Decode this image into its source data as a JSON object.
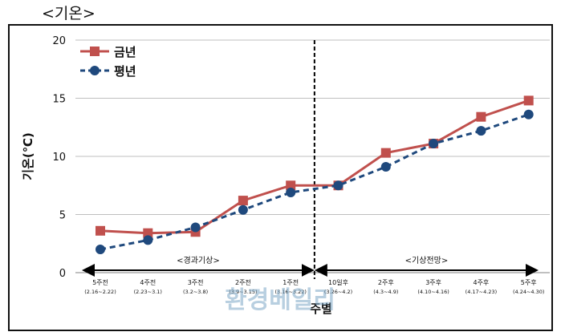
{
  "title": "<기온>",
  "watermark": "환경베일리",
  "colors": {
    "current": "#c0504d",
    "normal": "#1f497d",
    "grid": "#bfbfbf",
    "divider": "#000000"
  },
  "periods": [
    {
      "label": "<경과기상>"
    },
    {
      "label": "<기상전망>"
    }
  ],
  "chart_data": {
    "type": "line",
    "ylabel": "기온(℃)",
    "xlabel": "주별",
    "ylim": [
      0,
      20
    ],
    "yticks": [
      0,
      5,
      10,
      15,
      20
    ],
    "grid": true,
    "legend_position": "top-left",
    "categories": [
      {
        "label": "5주전",
        "sub": "(2.16~2.22)"
      },
      {
        "label": "4주전",
        "sub": "(2.23~3.1)"
      },
      {
        "label": "3주전",
        "sub": "(3.2~3.8)"
      },
      {
        "label": "2주전",
        "sub": "(3.9~3.15)"
      },
      {
        "label": "1주전",
        "sub": "(3.16~3.22)"
      },
      {
        "label": "10일후",
        "sub": "(3.26~4.2)"
      },
      {
        "label": "2주후",
        "sub": "(4.3~4.9)"
      },
      {
        "label": "3주후",
        "sub": "(4.10~4.16)"
      },
      {
        "label": "4주후",
        "sub": "(4.17~4.23)"
      },
      {
        "label": "5주후",
        "sub": "(4.24~4.30)"
      }
    ],
    "series": [
      {
        "name": "금년",
        "values": [
          3.6,
          3.4,
          3.5,
          6.2,
          7.5,
          7.5,
          10.3,
          11.1,
          13.4,
          14.8
        ]
      },
      {
        "name": "평년",
        "values": [
          2.0,
          2.8,
          3.9,
          5.4,
          6.9,
          7.5,
          9.1,
          11.1,
          12.2,
          13.6
        ]
      }
    ]
  }
}
